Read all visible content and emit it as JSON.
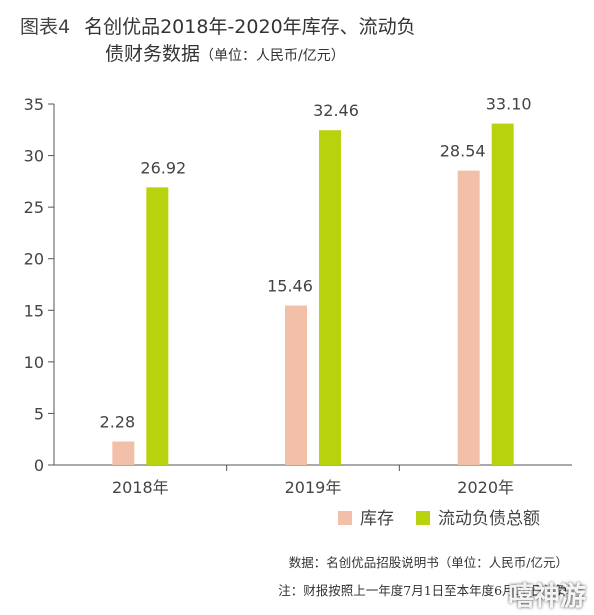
{
  "title": {
    "prefix": "图表4",
    "line1": "名创优品2018年-2020年库存、流动负",
    "line2": "债财务数据",
    "unit": "（单位：人民币/亿元）"
  },
  "chart_data": {
    "type": "bar",
    "categories": [
      "2018年",
      "2019年",
      "2020年"
    ],
    "series": [
      {
        "name": "库存",
        "values": [
          2.28,
          15.46,
          28.54
        ],
        "labels": [
          "2.28",
          "15.46",
          "28.54"
        ],
        "color": "#f2c0a9"
      },
      {
        "name": "流动负债总额",
        "values": [
          26.92,
          32.46,
          33.1
        ],
        "labels": [
          "26.92",
          "32.46",
          "33.10"
        ],
        "color": "#b9d20e"
      }
    ],
    "ylim": [
      0,
      35
    ],
    "yticks": [
      "0",
      "5",
      "10",
      "15",
      "20",
      "25",
      "30",
      "35"
    ],
    "legend": "bottom-right",
    "grid": false
  },
  "footnotes": {
    "source": "数据：名创优品招股说明书（单位：人民币/亿元）",
    "note": "注：财报按照上一年度7月1日至本年度6月30日计算"
  },
  "watermark": "嘻神游"
}
